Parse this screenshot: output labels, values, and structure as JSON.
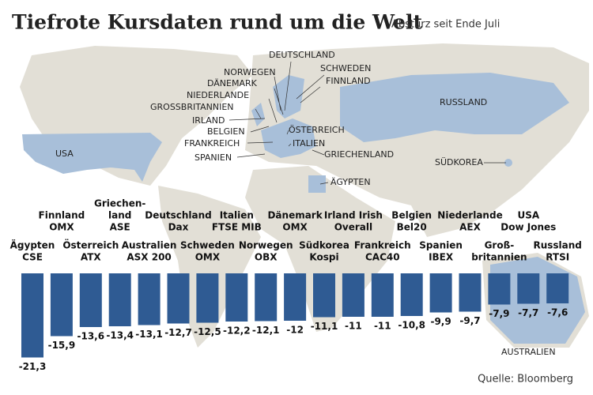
{
  "title": "Tiefrote Kursdaten rund um die Welt",
  "subtitle": "Absturz seit Ende Juli",
  "source": "Quelle: Bloomberg",
  "map_labels": [
    "DEUTSCHLAND",
    "NORWEGEN",
    "SCHWEDEN",
    "DÄNEMARK",
    "FINNLAND",
    "NIEDERLANDE",
    "GROSSBRITANNIEN",
    "IRLAND",
    "BELGIEN",
    "ÖSTERREICH",
    "FRANKREICH",
    "ITALIEN",
    "SPANIEN",
    "GRIECHENLAND",
    "ÄGYPTEN",
    "USA",
    "RUSSLAND",
    "SÜDKOREA",
    "AUSTRALIEN"
  ],
  "chart_data": {
    "type": "bar",
    "color": "#2f5b93",
    "categories": [
      [
        "Ägypten",
        "CSE"
      ],
      [
        "Finnland",
        "OMX"
      ],
      [
        "Österreich",
        "ATX"
      ],
      [
        "Griechen-",
        "land",
        "ASE"
      ],
      [
        "Australien",
        "ASX 200"
      ],
      [
        "Deutschland",
        "Dax"
      ],
      [
        "Schweden",
        "OMX"
      ],
      [
        "Italien",
        "FTSE MIB"
      ],
      [
        "Norwegen",
        "OBX"
      ],
      [
        "Dänemark",
        "OMX"
      ],
      [
        "Südkorea",
        "Kospi"
      ],
      [
        "Irland Irish",
        "Overall"
      ],
      [
        "Frankreich",
        "CAC40"
      ],
      [
        "Belgien",
        "Bel20"
      ],
      [
        "Spanien",
        "IBEX"
      ],
      [
        "Niederlande",
        "AEX"
      ],
      [
        "Groß-",
        "britannien"
      ],
      [
        "USA",
        "Dow Jones"
      ],
      [
        "Russland",
        "RTSI"
      ]
    ],
    "values": [
      -21.3,
      -15.9,
      -13.6,
      -13.4,
      -13.1,
      -12.7,
      -12.5,
      -12.2,
      -12.1,
      -12,
      -11.1,
      -11,
      -11,
      -10.8,
      -9.9,
      -9.7,
      -7.9,
      -7.7,
      -7.6
    ],
    "value_labels": [
      "-21,3",
      "-15,9",
      "-13,6",
      "-13,4",
      "-13,1",
      "-12,7",
      "-12,5",
      "-12,2",
      "-12,1",
      "-12",
      "-11,1",
      "-11",
      "-11",
      "-10,8",
      "-9,9",
      "-9,7",
      "-7,9",
      "-7,7",
      "-7,6"
    ]
  }
}
